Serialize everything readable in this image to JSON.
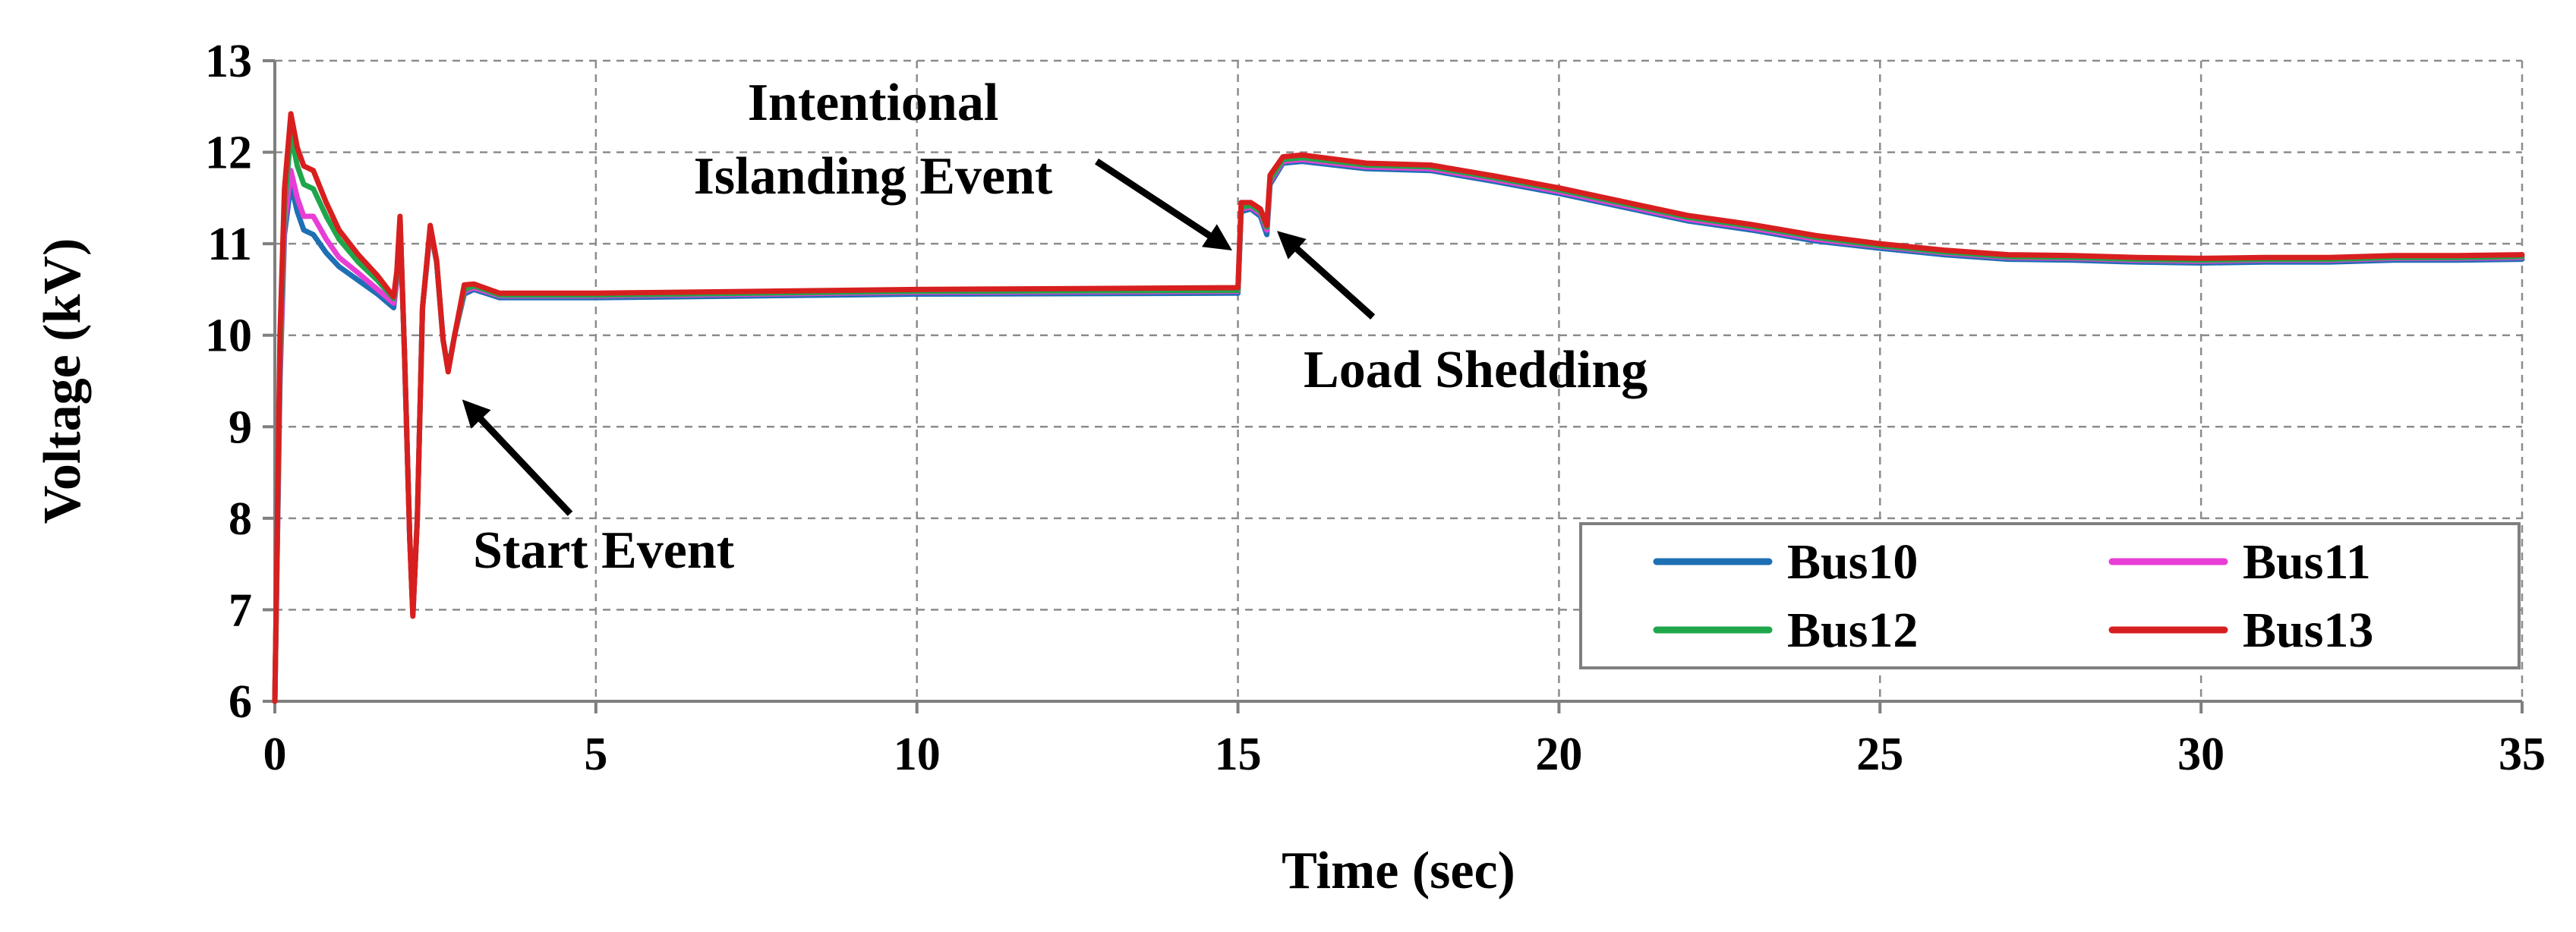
{
  "chart_data": {
    "type": "line",
    "title": "",
    "xlabel": "Time (sec)",
    "ylabel": "Voltage (kV)",
    "xlim": [
      0,
      35
    ],
    "ylim": [
      6,
      13
    ],
    "xticks": [
      0,
      5,
      10,
      15,
      20,
      25,
      30,
      35
    ],
    "yticks": [
      6,
      7,
      8,
      9,
      10,
      11,
      12,
      13
    ],
    "grid": true,
    "legend_position": "bottom-right",
    "series": [
      {
        "name": "Bus10",
        "color": "#1f6fb4",
        "points": [
          [
            0,
            6.0
          ],
          [
            0.08,
            9.5
          ],
          [
            0.15,
            11.1
          ],
          [
            0.25,
            11.65
          ],
          [
            0.35,
            11.35
          ],
          [
            0.45,
            11.15
          ],
          [
            0.6,
            11.1
          ],
          [
            0.8,
            10.9
          ],
          [
            1.0,
            10.75
          ],
          [
            1.3,
            10.6
          ],
          [
            1.6,
            10.45
          ],
          [
            1.85,
            10.3
          ],
          [
            1.9,
            10.6
          ],
          [
            1.95,
            11.25
          ],
          [
            2.02,
            9.8
          ],
          [
            2.1,
            7.8
          ],
          [
            2.15,
            6.95
          ],
          [
            2.22,
            8.0
          ],
          [
            2.3,
            10.3
          ],
          [
            2.42,
            11.15
          ],
          [
            2.52,
            10.8
          ],
          [
            2.62,
            9.95
          ],
          [
            2.7,
            9.62
          ],
          [
            2.8,
            10.0
          ],
          [
            2.95,
            10.45
          ],
          [
            3.1,
            10.5
          ],
          [
            3.5,
            10.41
          ],
          [
            5,
            10.41
          ],
          [
            10,
            10.45
          ],
          [
            15,
            10.46
          ],
          [
            15.05,
            11.35
          ],
          [
            15.2,
            11.38
          ],
          [
            15.35,
            11.3
          ],
          [
            15.45,
            11.1
          ],
          [
            15.5,
            11.65
          ],
          [
            15.7,
            11.88
          ],
          [
            16,
            11.9
          ],
          [
            17,
            11.82
          ],
          [
            18,
            11.8
          ],
          [
            19,
            11.68
          ],
          [
            20,
            11.55
          ],
          [
            21,
            11.4
          ],
          [
            22,
            11.25
          ],
          [
            23,
            11.15
          ],
          [
            24,
            11.03
          ],
          [
            25,
            10.95
          ],
          [
            26,
            10.88
          ],
          [
            27,
            10.83
          ],
          [
            28,
            10.82
          ],
          [
            29,
            10.8
          ],
          [
            30,
            10.79
          ],
          [
            31,
            10.8
          ],
          [
            32,
            10.8
          ],
          [
            33,
            10.82
          ],
          [
            34,
            10.82
          ],
          [
            35,
            10.83
          ]
        ]
      },
      {
        "name": "Bus11",
        "color": "#e83ed6",
        "points": [
          [
            0,
            6.0
          ],
          [
            0.08,
            9.6
          ],
          [
            0.15,
            11.2
          ],
          [
            0.25,
            11.8
          ],
          [
            0.35,
            11.5
          ],
          [
            0.45,
            11.3
          ],
          [
            0.6,
            11.3
          ],
          [
            0.8,
            11.05
          ],
          [
            1.0,
            10.85
          ],
          [
            1.3,
            10.68
          ],
          [
            1.6,
            10.5
          ],
          [
            1.85,
            10.35
          ],
          [
            1.9,
            10.6
          ],
          [
            1.95,
            11.25
          ],
          [
            2.02,
            9.8
          ],
          [
            2.1,
            7.8
          ],
          [
            2.15,
            6.95
          ],
          [
            2.22,
            8.0
          ],
          [
            2.3,
            10.3
          ],
          [
            2.42,
            11.15
          ],
          [
            2.52,
            10.8
          ],
          [
            2.62,
            9.95
          ],
          [
            2.7,
            9.62
          ],
          [
            2.8,
            10.0
          ],
          [
            2.95,
            10.48
          ],
          [
            3.1,
            10.52
          ],
          [
            3.5,
            10.43
          ],
          [
            5,
            10.43
          ],
          [
            10,
            10.47
          ],
          [
            15,
            10.48
          ],
          [
            15.05,
            11.38
          ],
          [
            15.2,
            11.4
          ],
          [
            15.35,
            11.33
          ],
          [
            15.45,
            11.15
          ],
          [
            15.5,
            11.68
          ],
          [
            15.7,
            11.9
          ],
          [
            16,
            11.92
          ],
          [
            17,
            11.84
          ],
          [
            18,
            11.82
          ],
          [
            19,
            11.7
          ],
          [
            20,
            11.57
          ],
          [
            21,
            11.42
          ],
          [
            22,
            11.27
          ],
          [
            23,
            11.17
          ],
          [
            24,
            11.05
          ],
          [
            25,
            10.97
          ],
          [
            26,
            10.9
          ],
          [
            27,
            10.85
          ],
          [
            28,
            10.84
          ],
          [
            29,
            10.82
          ],
          [
            30,
            10.81
          ],
          [
            31,
            10.82
          ],
          [
            32,
            10.82
          ],
          [
            33,
            10.84
          ],
          [
            34,
            10.84
          ],
          [
            35,
            10.85
          ]
        ]
      },
      {
        "name": "Bus12",
        "color": "#1fa64b",
        "points": [
          [
            0,
            6.0
          ],
          [
            0.08,
            9.8
          ],
          [
            0.15,
            11.4
          ],
          [
            0.25,
            12.2
          ],
          [
            0.35,
            11.85
          ],
          [
            0.45,
            11.65
          ],
          [
            0.6,
            11.6
          ],
          [
            0.8,
            11.3
          ],
          [
            1.0,
            11.05
          ],
          [
            1.3,
            10.8
          ],
          [
            1.6,
            10.6
          ],
          [
            1.85,
            10.4
          ],
          [
            1.9,
            10.65
          ],
          [
            1.95,
            11.28
          ],
          [
            2.02,
            9.8
          ],
          [
            2.1,
            7.8
          ],
          [
            2.15,
            6.95
          ],
          [
            2.22,
            8.0
          ],
          [
            2.3,
            10.3
          ],
          [
            2.42,
            11.18
          ],
          [
            2.52,
            10.8
          ],
          [
            2.62,
            9.95
          ],
          [
            2.7,
            9.62
          ],
          [
            2.8,
            10.0
          ],
          [
            2.95,
            10.5
          ],
          [
            3.1,
            10.54
          ],
          [
            3.5,
            10.44
          ],
          [
            5,
            10.44
          ],
          [
            10,
            10.48
          ],
          [
            15,
            10.49
          ],
          [
            15.05,
            11.4
          ],
          [
            15.2,
            11.42
          ],
          [
            15.35,
            11.35
          ],
          [
            15.45,
            11.18
          ],
          [
            15.5,
            11.7
          ],
          [
            15.7,
            11.92
          ],
          [
            16,
            11.94
          ],
          [
            17,
            11.86
          ],
          [
            18,
            11.84
          ],
          [
            19,
            11.72
          ],
          [
            20,
            11.59
          ],
          [
            21,
            11.44
          ],
          [
            22,
            11.29
          ],
          [
            23,
            11.19
          ],
          [
            24,
            11.07
          ],
          [
            25,
            10.98
          ],
          [
            26,
            10.91
          ],
          [
            27,
            10.86
          ],
          [
            28,
            10.85
          ],
          [
            29,
            10.83
          ],
          [
            30,
            10.82
          ],
          [
            31,
            10.83
          ],
          [
            32,
            10.83
          ],
          [
            33,
            10.85
          ],
          [
            34,
            10.85
          ],
          [
            35,
            10.86
          ]
        ]
      },
      {
        "name": "Bus13",
        "color": "#d81f1f",
        "points": [
          [
            0,
            6.0
          ],
          [
            0.08,
            10.0
          ],
          [
            0.15,
            11.6
          ],
          [
            0.25,
            12.42
          ],
          [
            0.35,
            12.05
          ],
          [
            0.45,
            11.85
          ],
          [
            0.6,
            11.8
          ],
          [
            0.8,
            11.45
          ],
          [
            1.0,
            11.15
          ],
          [
            1.3,
            10.88
          ],
          [
            1.6,
            10.65
          ],
          [
            1.85,
            10.42
          ],
          [
            1.9,
            10.7
          ],
          [
            1.95,
            11.3
          ],
          [
            2.02,
            9.8
          ],
          [
            2.1,
            7.8
          ],
          [
            2.15,
            6.93
          ],
          [
            2.22,
            8.0
          ],
          [
            2.3,
            10.3
          ],
          [
            2.42,
            11.2
          ],
          [
            2.52,
            10.82
          ],
          [
            2.62,
            9.95
          ],
          [
            2.7,
            9.6
          ],
          [
            2.8,
            10.0
          ],
          [
            2.95,
            10.55
          ],
          [
            3.1,
            10.56
          ],
          [
            3.5,
            10.46
          ],
          [
            5,
            10.46
          ],
          [
            10,
            10.5
          ],
          [
            15,
            10.52
          ],
          [
            15.05,
            11.45
          ],
          [
            15.2,
            11.45
          ],
          [
            15.35,
            11.38
          ],
          [
            15.45,
            11.2
          ],
          [
            15.5,
            11.75
          ],
          [
            15.7,
            11.95
          ],
          [
            16,
            11.97
          ],
          [
            17,
            11.88
          ],
          [
            18,
            11.86
          ],
          [
            19,
            11.74
          ],
          [
            20,
            11.61
          ],
          [
            21,
            11.46
          ],
          [
            22,
            11.31
          ],
          [
            23,
            11.21
          ],
          [
            24,
            11.09
          ],
          [
            25,
            11.0
          ],
          [
            26,
            10.93
          ],
          [
            27,
            10.88
          ],
          [
            28,
            10.87
          ],
          [
            29,
            10.85
          ],
          [
            30,
            10.84
          ],
          [
            31,
            10.85
          ],
          [
            32,
            10.85
          ],
          [
            33,
            10.87
          ],
          [
            34,
            10.87
          ],
          [
            35,
            10.88
          ]
        ]
      }
    ],
    "annotations": [
      {
        "lines": [
          "Intentional",
          "Islanding Event"
        ],
        "arrow_from": [
          12.8,
          11.9
        ],
        "arrow_to": [
          14.75,
          11.0
        ]
      },
      {
        "lines": [
          "Load Shedding"
        ],
        "arrow_from": [
          17.1,
          10.2
        ],
        "arrow_to": [
          15.75,
          11.05
        ]
      },
      {
        "lines": [
          "Start Event"
        ],
        "arrow_from": [
          4.6,
          8.05
        ],
        "arrow_to": [
          3.05,
          9.2
        ]
      }
    ]
  }
}
